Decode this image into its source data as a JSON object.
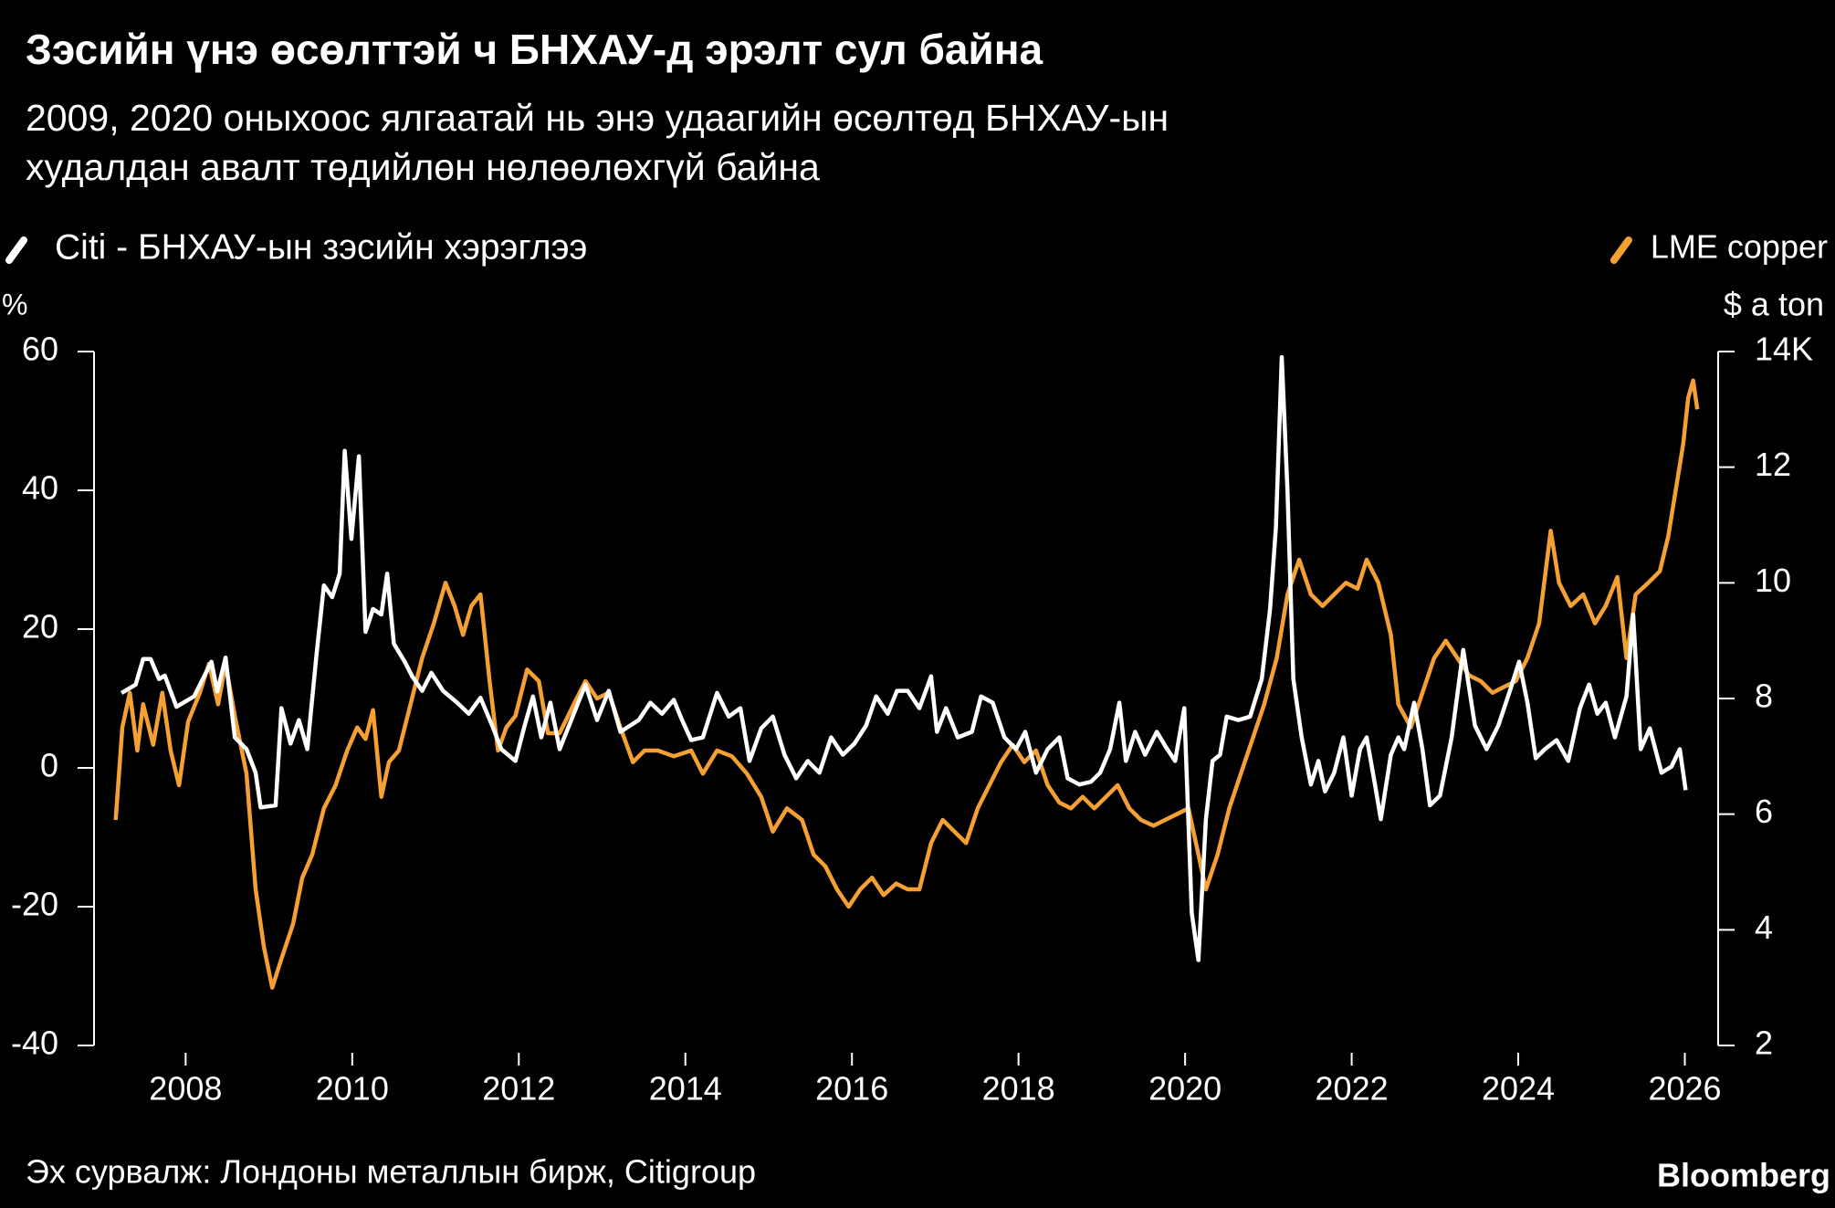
{
  "chart_data": {
    "type": "line",
    "title": "Зэсийн үнэ өсөлттэй ч БНХАУ-д эрэлт сул байна",
    "subtitle": [
      "2009, 2020 оныхоос ялгаатай нь энэ удаагийн өсөлтөд БНХАУ-ын",
      "худалдан авалт төдийлөн нөлөөлөхгүй байна"
    ],
    "ylabel": "%",
    "y2label": "$ a ton",
    "source": "Эх сурвалж: Лондоны металлын бирж,  Citigroup",
    "credit": "Bloomberg",
    "xlim": [
      2006.9,
      2026.4
    ],
    "xticks": [
      2008,
      2010,
      2012,
      2014,
      2016,
      2018,
      2020,
      2022,
      2024,
      2026
    ],
    "ylim": [
      -40,
      60
    ],
    "yticks": [
      -40,
      -20,
      0,
      20,
      40,
      60
    ],
    "y2lim": [
      2,
      14
    ],
    "y2ticks": [
      2,
      4,
      6,
      8,
      10,
      12,
      {
        "value": 14,
        "label": "14K"
      }
    ],
    "series": [
      {
        "name": "Citi - БНХАУ-ын зэсийн хэрэглээ",
        "color": "#ffffff",
        "axis": "y",
        "x": [
          2007.23,
          2007.4,
          2007.49,
          2007.58,
          2007.68,
          2007.75,
          2007.89,
          2008.1,
          2008.31,
          2008.38,
          2008.48,
          2008.59,
          2008.73,
          2008.84,
          2008.9,
          2009.08,
          2009.15,
          2009.26,
          2009.36,
          2009.46,
          2009.57,
          2009.66,
          2009.76,
          2009.85,
          2009.91,
          2009.99,
          2010.08,
          2010.16,
          2010.25,
          2010.35,
          2010.42,
          2010.5,
          2010.63,
          2010.72,
          2010.84,
          2010.95,
          2011.09,
          2011.26,
          2011.4,
          2011.54,
          2011.68,
          2011.79,
          2011.96,
          2012.07,
          2012.17,
          2012.27,
          2012.38,
          2012.49,
          2012.66,
          2012.8,
          2012.94,
          2013.08,
          2013.22,
          2013.44,
          2013.58,
          2013.72,
          2013.86,
          2013.96,
          2014.07,
          2014.21,
          2014.38,
          2014.52,
          2014.66,
          2014.77,
          2014.91,
          2015.05,
          2015.19,
          2015.33,
          2015.47,
          2015.61,
          2015.75,
          2015.89,
          2016.03,
          2016.17,
          2016.29,
          2016.43,
          2016.54,
          2016.67,
          2016.81,
          2016.95,
          2017.02,
          2017.13,
          2017.27,
          2017.44,
          2017.55,
          2017.69,
          2017.83,
          2017.97,
          2018.08,
          2018.21,
          2018.35,
          2018.49,
          2018.59,
          2018.73,
          2018.87,
          2018.98,
          2019.1,
          2019.21,
          2019.29,
          2019.4,
          2019.52,
          2019.66,
          2019.77,
          2019.88,
          2019.99,
          2020.08,
          2020.16,
          2020.25,
          2020.33,
          2020.42,
          2020.5,
          2020.64,
          2020.78,
          2020.92,
          2021.02,
          2021.09,
          2021.16,
          2021.23,
          2021.3,
          2021.4,
          2021.51,
          2021.6,
          2021.68,
          2021.79,
          2021.9,
          2022.0,
          2022.1,
          2022.18,
          2022.28,
          2022.35,
          2022.47,
          2022.56,
          2022.63,
          2022.75,
          2022.85,
          2022.94,
          2023.06,
          2023.2,
          2023.34,
          2023.48,
          2023.62,
          2023.76,
          2023.9,
          2024.01,
          2024.11,
          2024.21,
          2024.32,
          2024.46,
          2024.6,
          2024.74,
          2024.85,
          2024.95,
          2025.05,
          2025.16,
          2025.3,
          2025.38,
          2025.47,
          2025.58,
          2025.72,
          2025.84,
          2025.94,
          2026.01
        ],
        "values": [
          10.8,
          12,
          15.7,
          15.7,
          12.8,
          13.3,
          8.8,
          10.3,
          15.3,
          11,
          15.9,
          4.4,
          2.7,
          -0.7,
          -5.7,
          -5.4,
          8.6,
          3.5,
          6.9,
          2.7,
          16.2,
          26.3,
          24.6,
          28,
          45.7,
          33,
          44.9,
          19.6,
          22.9,
          22.1,
          28,
          17.9,
          15.3,
          13.2,
          11.1,
          13.7,
          11.1,
          9.4,
          7.8,
          10.1,
          6.1,
          2.7,
          1,
          6.1,
          10.3,
          4.4,
          9.4,
          2.7,
          7.8,
          12,
          6.9,
          11.1,
          5.2,
          6.9,
          9.4,
          7.8,
          9.8,
          6.9,
          4,
          4.4,
          10.8,
          7.4,
          8.6,
          1,
          5.7,
          7.4,
          1.9,
          -1.5,
          1,
          -0.7,
          4.4,
          1.9,
          3.5,
          6.1,
          10.3,
          7.8,
          11.1,
          11.1,
          8.6,
          13.2,
          5.2,
          8.6,
          4.4,
          5.2,
          10.3,
          9.4,
          4.4,
          2.7,
          5.2,
          -0.7,
          2.7,
          4.4,
          -1.5,
          -2.4,
          -2,
          -0.7,
          2.7,
          9.4,
          1,
          5.2,
          1.9,
          5.2,
          3,
          1,
          8.6,
          -20.9,
          -27.7,
          -7.4,
          1,
          1.9,
          7.4,
          6.9,
          7.4,
          12.8,
          22.9,
          34.7,
          59.2,
          39.8,
          12.8,
          4.4,
          -2.4,
          1,
          -3.4,
          -0.7,
          4.4,
          -4,
          2.7,
          4.4,
          -2.4,
          -7.4,
          1.9,
          4.4,
          2.7,
          9.4,
          2.7,
          -5.4,
          -4,
          4.4,
          17,
          6.1,
          2.7,
          6.1,
          11.1,
          15.3,
          9.4,
          1.4,
          2.7,
          4,
          1,
          8.6,
          12,
          7.8,
          9.4,
          4.4,
          10.3,
          22.1,
          2.7,
          5.7,
          -0.7,
          0.2,
          2.7,
          -3.2
        ]
      },
      {
        "name": "LME copper",
        "color": "#f5a033",
        "axis": "y2",
        "x": [
          2007.16,
          2007.24,
          2007.33,
          2007.42,
          2007.49,
          2007.61,
          2007.72,
          2007.82,
          2007.92,
          2008.03,
          2008.17,
          2008.28,
          2008.39,
          2008.48,
          2008.59,
          2008.73,
          2008.84,
          2008.94,
          2009.04,
          2009.15,
          2009.29,
          2009.4,
          2009.52,
          2009.66,
          2009.8,
          2009.94,
          2010.06,
          2010.16,
          2010.25,
          2010.35,
          2010.44,
          2010.56,
          2010.7,
          2010.84,
          2010.98,
          2011.12,
          2011.23,
          2011.33,
          2011.43,
          2011.54,
          2011.65,
          2011.75,
          2011.85,
          2011.96,
          2012.1,
          2012.24,
          2012.35,
          2012.49,
          2012.66,
          2012.8,
          2012.94,
          2013.08,
          2013.22,
          2013.37,
          2013.51,
          2013.67,
          2013.86,
          2014.07,
          2014.21,
          2014.38,
          2014.56,
          2014.74,
          2014.91,
          2015.05,
          2015.22,
          2015.4,
          2015.54,
          2015.68,
          2015.82,
          2015.96,
          2016.1,
          2016.24,
          2016.38,
          2016.53,
          2016.67,
          2016.81,
          2016.95,
          2017.09,
          2017.23,
          2017.37,
          2017.51,
          2017.65,
          2017.79,
          2017.93,
          2018.07,
          2018.21,
          2018.35,
          2018.49,
          2018.63,
          2018.77,
          2018.91,
          2019.05,
          2019.19,
          2019.33,
          2019.47,
          2019.62,
          2019.76,
          2019.9,
          2020.04,
          2020.13,
          2020.25,
          2020.39,
          2020.53,
          2020.67,
          2020.81,
          2020.95,
          2021.1,
          2021.23,
          2021.37,
          2021.51,
          2021.65,
          2021.79,
          2021.93,
          2022.07,
          2022.18,
          2022.32,
          2022.47,
          2022.56,
          2022.71,
          2022.85,
          2022.99,
          2023.13,
          2023.27,
          2023.41,
          2023.55,
          2023.69,
          2023.83,
          2023.97,
          2024.11,
          2024.25,
          2024.39,
          2024.49,
          2024.63,
          2024.78,
          2024.92,
          2025.05,
          2025.19,
          2025.3,
          2025.41,
          2025.56,
          2025.7,
          2025.8,
          2025.89,
          2025.98,
          2026.04,
          2026.1,
          2026.15
        ],
        "values": [
          5.9,
          7.5,
          8.1,
          7.1,
          7.9,
          7.2,
          8.1,
          7.1,
          6.5,
          7.6,
          8.1,
          8.6,
          7.9,
          8.6,
          7.7,
          6.7,
          4.7,
          3.7,
          3,
          3.5,
          4.1,
          4.9,
          5.3,
          6.1,
          6.5,
          7.1,
          7.5,
          7.3,
          7.8,
          6.3,
          6.9,
          7.1,
          7.9,
          8.7,
          9.3,
          10,
          9.6,
          9.1,
          9.6,
          9.8,
          8.3,
          7.1,
          7.5,
          7.7,
          8.5,
          8.3,
          7.4,
          7.4,
          7.9,
          8.3,
          8,
          8.1,
          7.5,
          6.9,
          7.1,
          7.1,
          7,
          7.1,
          6.7,
          7.1,
          7,
          6.7,
          6.3,
          5.7,
          6.1,
          5.9,
          5.3,
          5.1,
          4.7,
          4.4,
          4.7,
          4.9,
          4.6,
          4.8,
          4.7,
          4.7,
          5.5,
          5.9,
          5.7,
          5.5,
          6.1,
          6.5,
          6.9,
          7.2,
          6.9,
          7.1,
          6.5,
          6.2,
          6.1,
          6.3,
          6.1,
          6.3,
          6.5,
          6.1,
          5.9,
          5.8,
          5.9,
          6,
          6.1,
          5.5,
          4.7,
          5.3,
          6.1,
          6.7,
          7.3,
          7.9,
          8.7,
          9.8,
          10.4,
          9.8,
          9.6,
          9.8,
          10,
          9.9,
          10.4,
          10,
          9.1,
          7.9,
          7.5,
          8.1,
          8.7,
          9,
          8.7,
          8.4,
          8.3,
          8.1,
          8.2,
          8.3,
          8.7,
          9.3,
          10.9,
          10,
          9.6,
          9.8,
          9.3,
          9.6,
          10.1,
          8.7,
          9.8,
          10,
          10.2,
          10.8,
          11.6,
          12.4,
          13.2,
          13.5,
          13
        ]
      }
    ]
  }
}
